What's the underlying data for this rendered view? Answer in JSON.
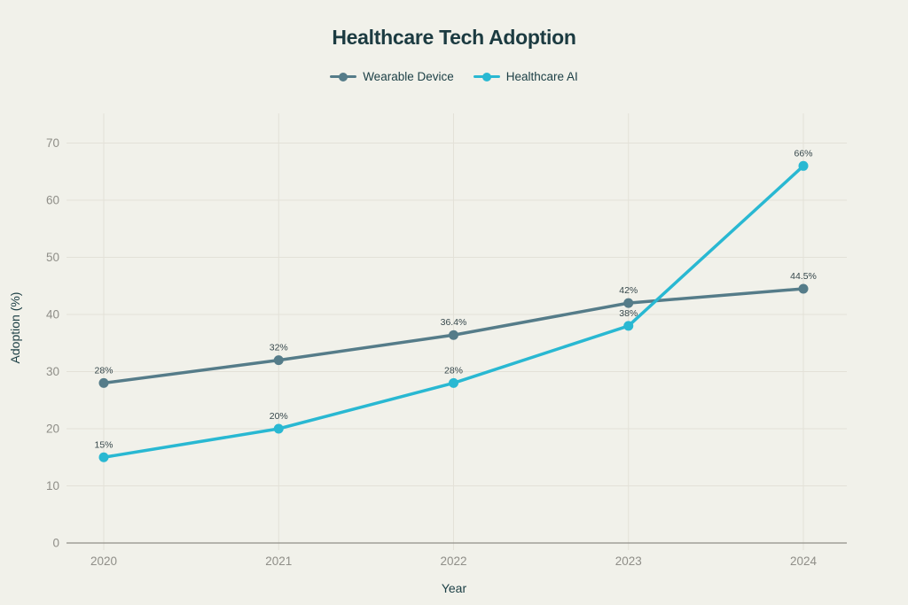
{
  "chart_data": {
    "type": "line",
    "title": "Healthcare Tech Adoption",
    "xlabel": "Year",
    "ylabel": "Adoption (%)",
    "categories": [
      "2020",
      "2021",
      "2022",
      "2023",
      "2024"
    ],
    "y_ticks": [
      0,
      10,
      20,
      30,
      40,
      50,
      60,
      70
    ],
    "ylim": [
      0,
      75
    ],
    "grid": true,
    "legend_position": "top",
    "series": [
      {
        "name": "Wearable Device",
        "color": "#557c89",
        "values": [
          28,
          32,
          36.4,
          42,
          44.5
        ],
        "labels": [
          "28%",
          "32%",
          "36.4%",
          "42%",
          "44.5%"
        ]
      },
      {
        "name": "Healthcare AI",
        "color": "#29b8d2",
        "values": [
          15,
          20,
          28,
          38,
          66
        ],
        "labels": [
          "15%",
          "20%",
          "28%",
          "38%",
          "66%"
        ]
      }
    ]
  },
  "theme": {
    "background": "#f1f1ea",
    "grid": "#e3e1d8",
    "axis": "#8f8e88",
    "title_text": "#1c3b41",
    "tick_text": "#8f8e88",
    "data_label_text": "#36474b"
  }
}
